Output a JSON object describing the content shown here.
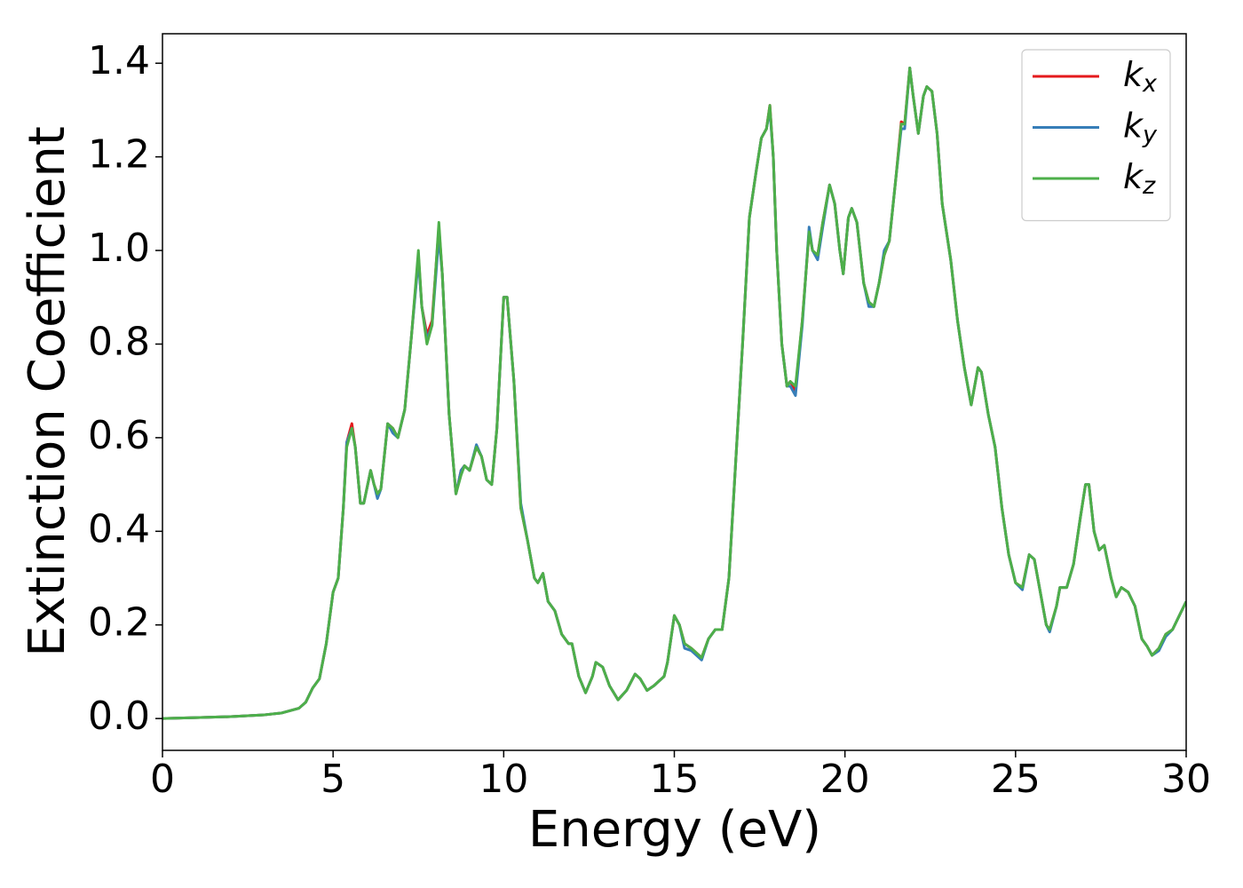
{
  "chart_data": {
    "type": "line",
    "xlabel": "Energy (eV)",
    "ylabel": "Extinction Coefficient",
    "xlim": [
      0,
      30
    ],
    "ylim": [
      -0.068,
      1.463
    ],
    "xticks": [
      0,
      5,
      10,
      15,
      20,
      25,
      30
    ],
    "yticks": [
      {
        "value": 0,
        "label": "0.0"
      },
      {
        "value": 0.2,
        "label": "0.2"
      },
      {
        "value": 0.4,
        "label": "0.4"
      },
      {
        "value": 0.6,
        "label": "0.6"
      },
      {
        "value": 0.8,
        "label": "0.8"
      },
      {
        "value": 1.0,
        "label": "1.0"
      },
      {
        "value": 1.2,
        "label": "1.2"
      },
      {
        "value": 1.4,
        "label": "1.4"
      }
    ],
    "legend": "upper right",
    "grid": false,
    "x": [
      0,
      1,
      2,
      3,
      3.5,
      4,
      4.2,
      4.4,
      4.6,
      4.8,
      5.0,
      5.15,
      5.3,
      5.4,
      5.55,
      5.65,
      5.8,
      5.9,
      6.1,
      6.2,
      6.3,
      6.4,
      6.6,
      6.75,
      6.9,
      7.1,
      7.3,
      7.5,
      7.6,
      7.75,
      7.9,
      8.1,
      8.2,
      8.4,
      8.6,
      8.75,
      8.85,
      9.0,
      9.2,
      9.35,
      9.5,
      9.65,
      9.8,
      10.0,
      10.1,
      10.3,
      10.5,
      10.7,
      10.9,
      11.0,
      11.15,
      11.3,
      11.5,
      11.7,
      11.9,
      12.0,
      12.2,
      12.4,
      12.6,
      12.7,
      12.9,
      13.1,
      13.35,
      13.6,
      13.85,
      14.0,
      14.2,
      14.4,
      14.7,
      14.8,
      15.0,
      15.15,
      15.3,
      15.5,
      15.8,
      16.0,
      16.2,
      16.4,
      16.6,
      16.8,
      17.0,
      17.2,
      17.4,
      17.55,
      17.7,
      17.8,
      17.9,
      18.0,
      18.15,
      18.3,
      18.4,
      18.55,
      18.75,
      18.95,
      19.05,
      19.2,
      19.35,
      19.55,
      19.7,
      19.85,
      19.95,
      20.1,
      20.2,
      20.35,
      20.55,
      20.7,
      20.85,
      21.0,
      21.15,
      21.3,
      21.5,
      21.65,
      21.75,
      21.9,
      22.0,
      22.15,
      22.3,
      22.4,
      22.55,
      22.7,
      22.85,
      23.1,
      23.3,
      23.5,
      23.7,
      23.9,
      24.0,
      24.2,
      24.4,
      24.6,
      24.8,
      25.0,
      25.2,
      25.4,
      25.55,
      25.7,
      25.9,
      26.0,
      26.2,
      26.3,
      26.5,
      26.7,
      26.9,
      27.05,
      27.15,
      27.3,
      27.45,
      27.6,
      27.8,
      27.95,
      28.1,
      28.3,
      28.5,
      28.7,
      28.85,
      29.0,
      29.2,
      29.4,
      29.6,
      29.8,
      30.0
    ],
    "series": [
      {
        "name": "kx",
        "color": "#e41a1c",
        "values": [
          0,
          0.002,
          0.004,
          0.008,
          0.012,
          0.022,
          0.035,
          0.065,
          0.085,
          0.16,
          0.27,
          0.3,
          0.45,
          0.59,
          0.63,
          0.58,
          0.46,
          0.46,
          0.53,
          0.5,
          0.48,
          0.49,
          0.63,
          0.62,
          0.6,
          0.66,
          0.82,
          0.99,
          0.88,
          0.82,
          0.85,
          1.05,
          0.95,
          0.65,
          0.48,
          0.53,
          0.54,
          0.53,
          0.58,
          0.56,
          0.51,
          0.5,
          0.62,
          0.9,
          0.9,
          0.72,
          0.45,
          0.38,
          0.3,
          0.29,
          0.31,
          0.25,
          0.23,
          0.18,
          0.16,
          0.16,
          0.09,
          0.055,
          0.09,
          0.12,
          0.11,
          0.07,
          0.04,
          0.06,
          0.095,
          0.085,
          0.06,
          0.07,
          0.09,
          0.12,
          0.22,
          0.2,
          0.16,
          0.15,
          0.13,
          0.17,
          0.19,
          0.19,
          0.3,
          0.55,
          0.8,
          1.07,
          1.17,
          1.24,
          1.26,
          1.31,
          1.2,
          1.0,
          0.8,
          0.71,
          0.72,
          0.7,
          0.85,
          1.04,
          1.0,
          0.99,
          1.06,
          1.14,
          1.1,
          1.0,
          0.95,
          1.07,
          1.09,
          1.06,
          0.93,
          0.89,
          0.88,
          0.93,
          0.99,
          1.02,
          1.16,
          1.275,
          1.27,
          1.39,
          1.33,
          1.25,
          1.33,
          1.35,
          1.34,
          1.25,
          1.1,
          0.98,
          0.85,
          0.75,
          0.67,
          0.75,
          0.74,
          0.65,
          0.58,
          0.45,
          0.35,
          0.29,
          0.28,
          0.35,
          0.34,
          0.28,
          0.2,
          0.19,
          0.24,
          0.28,
          0.28,
          0.33,
          0.43,
          0.5,
          0.5,
          0.4,
          0.36,
          0.37,
          0.3,
          0.26,
          0.28,
          0.27,
          0.24,
          0.17,
          0.155,
          0.135,
          0.15,
          0.18,
          0.19,
          0.22,
          0.25
        ]
      },
      {
        "name": "ky",
        "color": "#377eb8",
        "values": [
          0,
          0.002,
          0.004,
          0.008,
          0.012,
          0.022,
          0.035,
          0.065,
          0.085,
          0.16,
          0.27,
          0.3,
          0.45,
          0.59,
          0.62,
          0.58,
          0.46,
          0.46,
          0.53,
          0.5,
          0.47,
          0.49,
          0.63,
          0.61,
          0.6,
          0.66,
          0.82,
          0.98,
          0.88,
          0.81,
          0.84,
          1.03,
          0.95,
          0.65,
          0.48,
          0.53,
          0.54,
          0.53,
          0.585,
          0.56,
          0.51,
          0.5,
          0.62,
          0.9,
          0.9,
          0.72,
          0.46,
          0.38,
          0.3,
          0.29,
          0.31,
          0.25,
          0.23,
          0.18,
          0.16,
          0.16,
          0.09,
          0.055,
          0.09,
          0.12,
          0.11,
          0.07,
          0.04,
          0.06,
          0.095,
          0.085,
          0.06,
          0.07,
          0.09,
          0.12,
          0.22,
          0.2,
          0.15,
          0.145,
          0.125,
          0.17,
          0.19,
          0.19,
          0.3,
          0.55,
          0.8,
          1.07,
          1.17,
          1.24,
          1.26,
          1.3,
          1.2,
          1.0,
          0.8,
          0.71,
          0.71,
          0.69,
          0.84,
          1.05,
          1.0,
          0.98,
          1.05,
          1.14,
          1.1,
          1.0,
          0.95,
          1.07,
          1.09,
          1.06,
          0.93,
          0.88,
          0.88,
          0.93,
          1.0,
          1.02,
          1.16,
          1.26,
          1.26,
          1.39,
          1.33,
          1.25,
          1.33,
          1.35,
          1.34,
          1.25,
          1.1,
          0.98,
          0.85,
          0.75,
          0.67,
          0.75,
          0.74,
          0.65,
          0.58,
          0.45,
          0.35,
          0.29,
          0.275,
          0.35,
          0.34,
          0.28,
          0.2,
          0.185,
          0.24,
          0.28,
          0.28,
          0.33,
          0.43,
          0.5,
          0.5,
          0.4,
          0.36,
          0.37,
          0.3,
          0.26,
          0.28,
          0.27,
          0.24,
          0.17,
          0.155,
          0.135,
          0.145,
          0.175,
          0.19,
          0.22,
          0.25
        ]
      },
      {
        "name": "kz",
        "color": "#4daf4a",
        "values": [
          0,
          0.002,
          0.004,
          0.008,
          0.012,
          0.022,
          0.035,
          0.065,
          0.085,
          0.16,
          0.27,
          0.3,
          0.45,
          0.58,
          0.62,
          0.58,
          0.46,
          0.46,
          0.53,
          0.5,
          0.48,
          0.49,
          0.63,
          0.62,
          0.6,
          0.66,
          0.82,
          1.0,
          0.88,
          0.8,
          0.84,
          1.06,
          0.95,
          0.65,
          0.48,
          0.52,
          0.54,
          0.53,
          0.58,
          0.56,
          0.51,
          0.5,
          0.62,
          0.9,
          0.9,
          0.72,
          0.45,
          0.38,
          0.3,
          0.29,
          0.31,
          0.25,
          0.23,
          0.18,
          0.16,
          0.16,
          0.09,
          0.055,
          0.09,
          0.12,
          0.11,
          0.07,
          0.04,
          0.06,
          0.095,
          0.085,
          0.06,
          0.07,
          0.09,
          0.12,
          0.22,
          0.2,
          0.16,
          0.15,
          0.13,
          0.17,
          0.19,
          0.19,
          0.3,
          0.55,
          0.8,
          1.07,
          1.17,
          1.24,
          1.26,
          1.31,
          1.2,
          1.0,
          0.8,
          0.71,
          0.72,
          0.71,
          0.85,
          1.04,
          1.0,
          0.99,
          1.06,
          1.14,
          1.1,
          1.0,
          0.95,
          1.07,
          1.09,
          1.06,
          0.93,
          0.89,
          0.88,
          0.93,
          0.99,
          1.02,
          1.16,
          1.27,
          1.27,
          1.39,
          1.33,
          1.25,
          1.33,
          1.35,
          1.34,
          1.25,
          1.1,
          0.98,
          0.85,
          0.75,
          0.67,
          0.75,
          0.74,
          0.65,
          0.58,
          0.45,
          0.35,
          0.29,
          0.28,
          0.35,
          0.34,
          0.28,
          0.2,
          0.19,
          0.24,
          0.28,
          0.28,
          0.33,
          0.43,
          0.5,
          0.5,
          0.4,
          0.36,
          0.37,
          0.3,
          0.26,
          0.28,
          0.27,
          0.24,
          0.17,
          0.155,
          0.135,
          0.15,
          0.18,
          0.19,
          0.22,
          0.25
        ]
      }
    ]
  }
}
